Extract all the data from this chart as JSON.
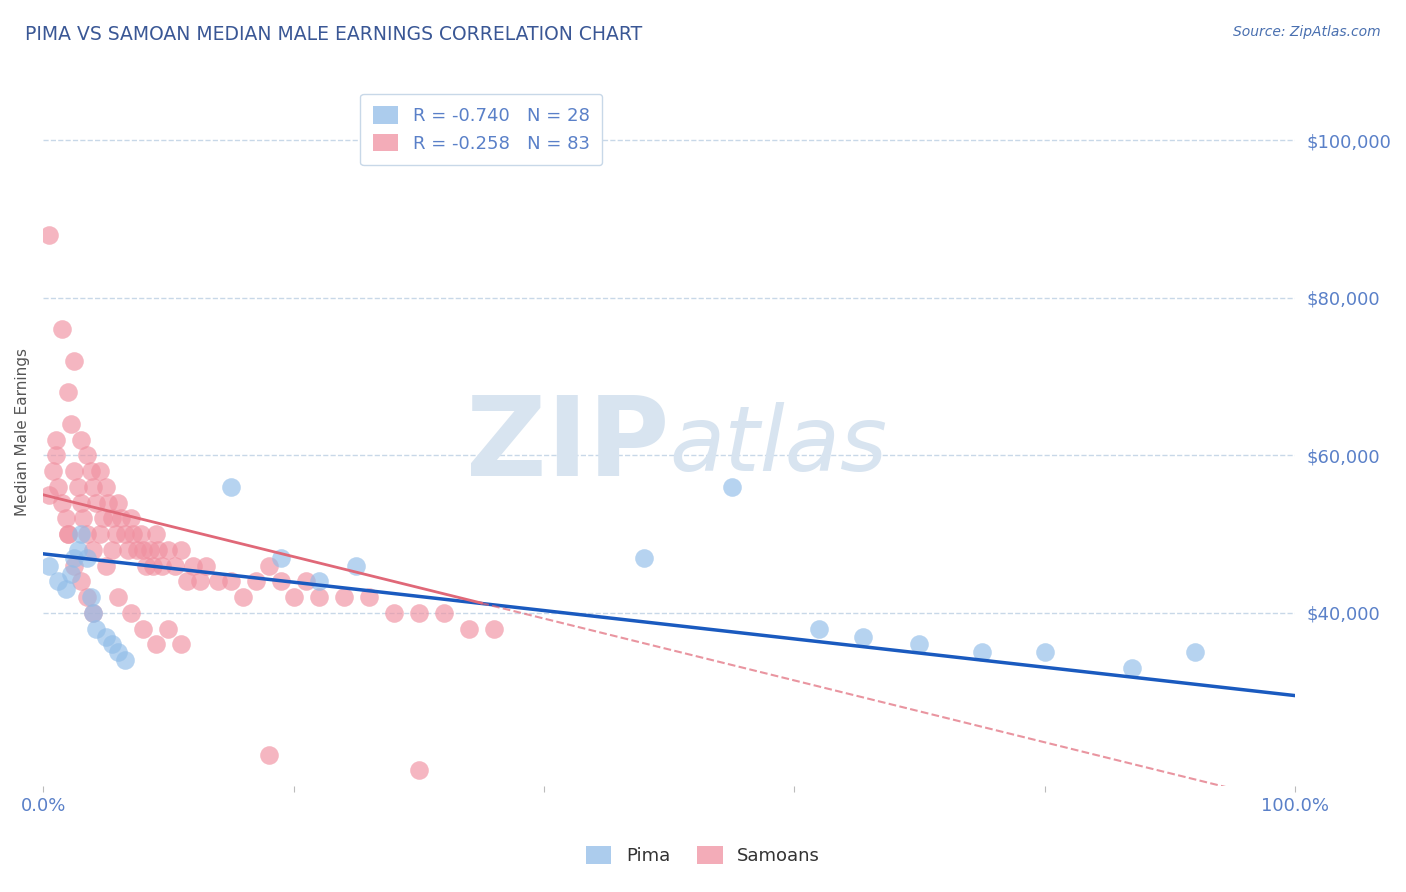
{
  "title": "PIMA VS SAMOAN MEDIAN MALE EARNINGS CORRELATION CHART",
  "source": "Source: ZipAtlas.com",
  "ylabel": "Median Male Earnings",
  "xlim": [
    0,
    1.0
  ],
  "ylim": [
    18000,
    108000
  ],
  "yticks": [
    40000,
    60000,
    80000,
    100000
  ],
  "title_color": "#3a5795",
  "source_color": "#4a70b0",
  "axis_color": "#5a80c8",
  "watermark_zip": "ZIP",
  "watermark_atlas": "atlas",
  "watermark_color": "#d8e4f0",
  "legend_r1": "R = -0.740",
  "legend_n1": "N = 28",
  "legend_r2": "R = -0.258",
  "legend_n2": "N = 83",
  "pima_color": "#90bce8",
  "samoan_color": "#f090a0",
  "pima_line_color": "#1a5abf",
  "samoan_line_color": "#e06878",
  "grid_color": "#c8d8e8",
  "pima_x": [
    0.005,
    0.012,
    0.018,
    0.022,
    0.025,
    0.028,
    0.03,
    0.035,
    0.038,
    0.04,
    0.042,
    0.05,
    0.055,
    0.06,
    0.065,
    0.15,
    0.19,
    0.22,
    0.25,
    0.48,
    0.55,
    0.62,
    0.655,
    0.7,
    0.75,
    0.8,
    0.87,
    0.92
  ],
  "pima_y": [
    46000,
    44000,
    43000,
    45000,
    47000,
    48000,
    50000,
    47000,
    42000,
    40000,
    38000,
    37000,
    36000,
    35000,
    34000,
    56000,
    47000,
    44000,
    46000,
    47000,
    56000,
    38000,
    37000,
    36000,
    35000,
    35000,
    33000,
    35000
  ],
  "samoan_x": [
    0.005,
    0.008,
    0.01,
    0.012,
    0.015,
    0.018,
    0.02,
    0.02,
    0.022,
    0.025,
    0.025,
    0.028,
    0.03,
    0.03,
    0.032,
    0.035,
    0.035,
    0.038,
    0.04,
    0.04,
    0.042,
    0.045,
    0.045,
    0.048,
    0.05,
    0.052,
    0.055,
    0.055,
    0.058,
    0.06,
    0.062,
    0.065,
    0.068,
    0.07,
    0.072,
    0.075,
    0.078,
    0.08,
    0.082,
    0.085,
    0.088,
    0.09,
    0.092,
    0.095,
    0.1,
    0.105,
    0.11,
    0.115,
    0.12,
    0.125,
    0.13,
    0.14,
    0.15,
    0.16,
    0.17,
    0.18,
    0.19,
    0.2,
    0.21,
    0.22,
    0.24,
    0.26,
    0.28,
    0.3,
    0.32,
    0.34,
    0.36,
    0.005,
    0.01,
    0.015,
    0.02,
    0.025,
    0.03,
    0.035,
    0.04,
    0.05,
    0.06,
    0.07,
    0.08,
    0.09,
    0.1,
    0.11,
    0.18,
    0.3
  ],
  "samoan_y": [
    55000,
    58000,
    60000,
    56000,
    54000,
    52000,
    68000,
    50000,
    64000,
    72000,
    58000,
    56000,
    62000,
    54000,
    52000,
    60000,
    50000,
    58000,
    56000,
    48000,
    54000,
    58000,
    50000,
    52000,
    56000,
    54000,
    52000,
    48000,
    50000,
    54000,
    52000,
    50000,
    48000,
    52000,
    50000,
    48000,
    50000,
    48000,
    46000,
    48000,
    46000,
    50000,
    48000,
    46000,
    48000,
    46000,
    48000,
    44000,
    46000,
    44000,
    46000,
    44000,
    44000,
    42000,
    44000,
    46000,
    44000,
    42000,
    44000,
    42000,
    42000,
    42000,
    40000,
    40000,
    40000,
    38000,
    38000,
    88000,
    62000,
    76000,
    50000,
    46000,
    44000,
    42000,
    40000,
    46000,
    42000,
    40000,
    38000,
    36000,
    38000,
    36000,
    22000,
    20000
  ]
}
